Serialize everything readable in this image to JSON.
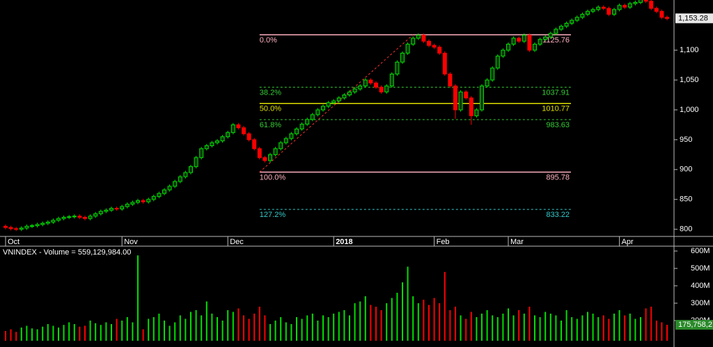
{
  "chart_data": {
    "type": "candlestick",
    "volume_title": "VNINDEX - Volume = 559,129,984.00",
    "categories": [
      "Oct",
      null,
      null,
      null,
      null,
      null,
      null,
      null,
      null,
      null,
      null,
      null,
      null,
      null,
      null,
      null,
      null,
      null,
      null,
      null,
      null,
      null,
      "Nov",
      null,
      null,
      null,
      null,
      null,
      null,
      null,
      null,
      null,
      null,
      null,
      null,
      null,
      null,
      null,
      null,
      null,
      null,
      null,
      "Dec",
      null,
      null,
      null,
      null,
      null,
      null,
      null,
      null,
      null,
      null,
      null,
      null,
      null,
      null,
      null,
      null,
      null,
      null,
      null,
      "2018",
      null,
      null,
      null,
      null,
      null,
      null,
      null,
      null,
      null,
      null,
      null,
      null,
      null,
      null,
      null,
      null,
      null,
      null,
      "Feb",
      null,
      null,
      null,
      null,
      null,
      null,
      null,
      null,
      null,
      null,
      null,
      null,
      null,
      "Mar",
      null,
      null,
      null,
      null,
      null,
      null,
      null,
      null,
      null,
      null,
      null,
      null,
      null,
      null,
      null,
      null,
      null,
      null,
      null,
      null,
      "Apr",
      null,
      null,
      null,
      null,
      null,
      null,
      null,
      null,
      null
    ],
    "open": [
      805,
      803,
      801,
      800,
      802,
      805,
      806,
      808,
      810,
      812,
      815,
      818,
      820,
      821,
      822,
      820,
      818,
      822,
      826,
      830,
      832,
      835,
      834,
      838,
      842,
      845,
      848,
      846,
      850,
      855,
      860,
      866,
      872,
      880,
      888,
      895,
      905,
      920,
      935,
      940,
      945,
      948,
      955,
      962,
      975,
      970,
      960,
      950,
      935,
      920,
      915,
      925,
      935,
      945,
      952,
      960,
      968,
      976,
      984,
      992,
      1000,
      1006,
      1012,
      1015,
      1020,
      1025,
      1030,
      1035,
      1040,
      1050,
      1045,
      1038,
      1030,
      1040,
      1060,
      1080,
      1095,
      1110,
      1120,
      1125,
      1115,
      1108,
      1105,
      1095,
      1060,
      1040,
      1000,
      1030,
      1020,
      990,
      1000,
      1040,
      1050,
      1070,
      1090,
      1100,
      1110,
      1120,
      1115,
      1125,
      1100,
      1110,
      1118,
      1122,
      1128,
      1135,
      1140,
      1145,
      1150,
      1155,
      1160,
      1165,
      1168,
      1172,
      1170,
      1160,
      1168,
      1175,
      1172,
      1178,
      1180,
      1185,
      1182,
      1170,
      1165,
      1155
    ],
    "high": [
      808,
      806,
      804,
      805,
      808,
      809,
      811,
      813,
      815,
      818,
      821,
      823,
      824,
      825,
      825,
      823,
      825,
      829,
      833,
      835,
      838,
      838,
      841,
      845,
      848,
      851,
      851,
      853,
      858,
      863,
      869,
      875,
      883,
      891,
      898,
      908,
      923,
      938,
      943,
      948,
      951,
      958,
      965,
      978,
      978,
      973,
      963,
      953,
      938,
      923,
      928,
      938,
      948,
      955,
      963,
      971,
      979,
      987,
      995,
      1003,
      1009,
      1015,
      1018,
      1023,
      1028,
      1033,
      1038,
      1043,
      1053,
      1053,
      1048,
      1041,
      1043,
      1063,
      1083,
      1098,
      1113,
      1123,
      1128,
      1128,
      1118,
      1111,
      1108,
      1098,
      1063,
      1043,
      1033,
      1033,
      1023,
      1003,
      1043,
      1053,
      1073,
      1093,
      1103,
      1113,
      1123,
      1123,
      1128,
      1128,
      1113,
      1121,
      1125,
      1131,
      1138,
      1143,
      1148,
      1153,
      1158,
      1163,
      1168,
      1171,
      1175,
      1175,
      1173,
      1171,
      1178,
      1178,
      1181,
      1183,
      1188,
      1188,
      1185,
      1173,
      1168,
      1158
    ],
    "low": [
      800,
      798,
      797,
      797,
      799,
      802,
      803,
      805,
      807,
      809,
      812,
      815,
      817,
      818,
      817,
      815,
      815,
      819,
      823,
      827,
      829,
      831,
      831,
      835,
      839,
      842,
      843,
      843,
      847,
      852,
      857,
      863,
      869,
      877,
      885,
      892,
      902,
      917,
      932,
      937,
      942,
      945,
      952,
      959,
      967,
      957,
      947,
      932,
      917,
      912,
      912,
      922,
      932,
      942,
      949,
      957,
      965,
      973,
      981,
      989,
      997,
      1003,
      1009,
      1012,
      1017,
      1022,
      1027,
      1032,
      1037,
      1042,
      1035,
      1027,
      1027,
      1037,
      1057,
      1077,
      1092,
      1107,
      1117,
      1112,
      1105,
      1102,
      1092,
      1057,
      1037,
      985,
      997,
      1017,
      975,
      987,
      997,
      1037,
      1047,
      1067,
      1087,
      1097,
      1107,
      1112,
      1112,
      1097,
      1097,
      1107,
      1115,
      1119,
      1125,
      1132,
      1137,
      1142,
      1147,
      1152,
      1157,
      1162,
      1165,
      1167,
      1157,
      1157,
      1165,
      1169,
      1169,
      1175,
      1177,
      1179,
      1167,
      1162,
      1152,
      1150
    ],
    "close": [
      803,
      801,
      800,
      802,
      805,
      806,
      808,
      810,
      812,
      815,
      818,
      820,
      821,
      822,
      820,
      818,
      822,
      826,
      830,
      832,
      835,
      834,
      838,
      842,
      845,
      848,
      846,
      850,
      855,
      860,
      866,
      872,
      880,
      888,
      895,
      905,
      920,
      935,
      940,
      945,
      948,
      955,
      962,
      975,
      970,
      960,
      950,
      935,
      920,
      915,
      925,
      935,
      945,
      952,
      960,
      968,
      976,
      984,
      992,
      1000,
      1006,
      1012,
      1015,
      1020,
      1025,
      1030,
      1035,
      1040,
      1050,
      1045,
      1038,
      1030,
      1040,
      1060,
      1080,
      1095,
      1110,
      1120,
      1125,
      1115,
      1108,
      1105,
      1095,
      1060,
      1040,
      1000,
      1030,
      1020,
      990,
      1000,
      1040,
      1050,
      1070,
      1090,
      1100,
      1110,
      1120,
      1115,
      1125,
      1100,
      1110,
      1118,
      1122,
      1128,
      1135,
      1140,
      1145,
      1150,
      1155,
      1160,
      1165,
      1168,
      1172,
      1170,
      1160,
      1168,
      1175,
      1172,
      1178,
      1180,
      1185,
      1182,
      1170,
      1165,
      1155,
      1153
    ],
    "volume": [
      140,
      150,
      135,
      160,
      170,
      155,
      150,
      165,
      180,
      170,
      160,
      175,
      190,
      180,
      165,
      170,
      200,
      185,
      175,
      190,
      180,
      210,
      200,
      220,
      190,
      575,
      150,
      210,
      220,
      240,
      200,
      170,
      190,
      230,
      210,
      250,
      260,
      230,
      310,
      240,
      220,
      200,
      260,
      250,
      270,
      230,
      210,
      240,
      280,
      230,
      180,
      200,
      220,
      190,
      180,
      220,
      210,
      230,
      240,
      200,
      230,
      220,
      240,
      250,
      260,
      230,
      300,
      310,
      340,
      290,
      280,
      260,
      300,
      330,
      360,
      420,
      510,
      340,
      300,
      320,
      290,
      330,
      300,
      480,
      260,
      280,
      230,
      210,
      250,
      220,
      240,
      260,
      230,
      220,
      240,
      270,
      230,
      260,
      240,
      280,
      230,
      220,
      250,
      240,
      230,
      200,
      260,
      220,
      210,
      230,
      250,
      240,
      220,
      230,
      210,
      240,
      260,
      230,
      240,
      210,
      220,
      270,
      280,
      200,
      190,
      175.7582
    ],
    "up_color": "#00e000",
    "down_color": "#ff0000",
    "ylim": [
      788,
      1184
    ],
    "yticks": [
      800,
      850,
      900,
      950,
      {
        "value": 1000,
        "label": "1,000"
      },
      {
        "value": 1050,
        "label": "1,050"
      },
      {
        "value": 1100,
        "label": "1,100"
      }
    ],
    "last_price": {
      "value": 1153.28,
      "label": "1,153.28"
    },
    "volume_ylim": [
      84,
      624
    ],
    "volume_yticks": [
      {
        "value": 200,
        "label": "200M"
      },
      {
        "value": 300,
        "label": "300M"
      },
      {
        "value": 400,
        "label": "400M"
      },
      {
        "value": 500,
        "label": "500M"
      },
      {
        "value": 600,
        "label": "600M"
      }
    ],
    "last_volume_label": "175,758,2",
    "fib_levels": [
      {
        "label": "0.0%",
        "value": 1125.76,
        "color": "#ffb0c0",
        "dashed": false
      },
      {
        "label": "38.2%",
        "value": 1037.91,
        "color": "#33cc33",
        "dashed": true
      },
      {
        "label": "50.0%",
        "value": 1010.77,
        "color": "#e0e000",
        "dashed": false
      },
      {
        "label": "61.8%",
        "value": 983.63,
        "color": "#33cc33",
        "dashed": true
      },
      {
        "label": "100.0%",
        "value": 895.78,
        "color": "#ffb0c0",
        "dashed": false
      },
      {
        "label": "127.2%",
        "value": 833.22,
        "color": "#33cccc",
        "dashed": true
      }
    ]
  }
}
